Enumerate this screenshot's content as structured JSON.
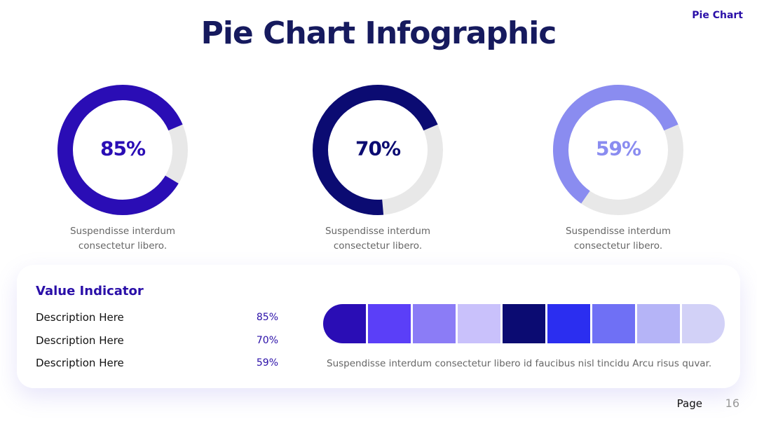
{
  "chart_data": [
    {
      "type": "donut",
      "values": [
        85
      ],
      "value_labels": [
        "85%"
      ],
      "color": "#2a0db5",
      "caption": "Suspendisse interdum consectetur libero."
    },
    {
      "type": "donut",
      "values": [
        70
      ],
      "value_labels": [
        "70%"
      ],
      "color": "#0b0b72",
      "caption": "Suspendisse interdum consectetur libero."
    },
    {
      "type": "donut",
      "values": [
        59
      ],
      "value_labels": [
        "59%"
      ],
      "color": "#8a8cf0",
      "caption": "Suspendisse interdum consectetur libero."
    }
  ],
  "header": {
    "title": "Pie Chart Infographic",
    "tag": "Pie Chart"
  },
  "indicator": {
    "title": "Value Indicator",
    "rows": [
      [
        "Description Here",
        "85%"
      ],
      [
        "Description Here",
        "70%"
      ],
      [
        "Description Here",
        "59%"
      ]
    ],
    "palette": [
      "#2a0db5",
      "#5b3ff8",
      "#8b7cf6",
      "#c9c1fb",
      "#0b0b72",
      "#2b2ef0",
      "#6f70f5",
      "#b5b4f7",
      "#d2d1f7"
    ],
    "caption": "Suspendisse interdum consectetur libero id faucibus nisl tincidu Arcu risus quvar."
  },
  "footer": {
    "label": "Page",
    "number": "16"
  }
}
